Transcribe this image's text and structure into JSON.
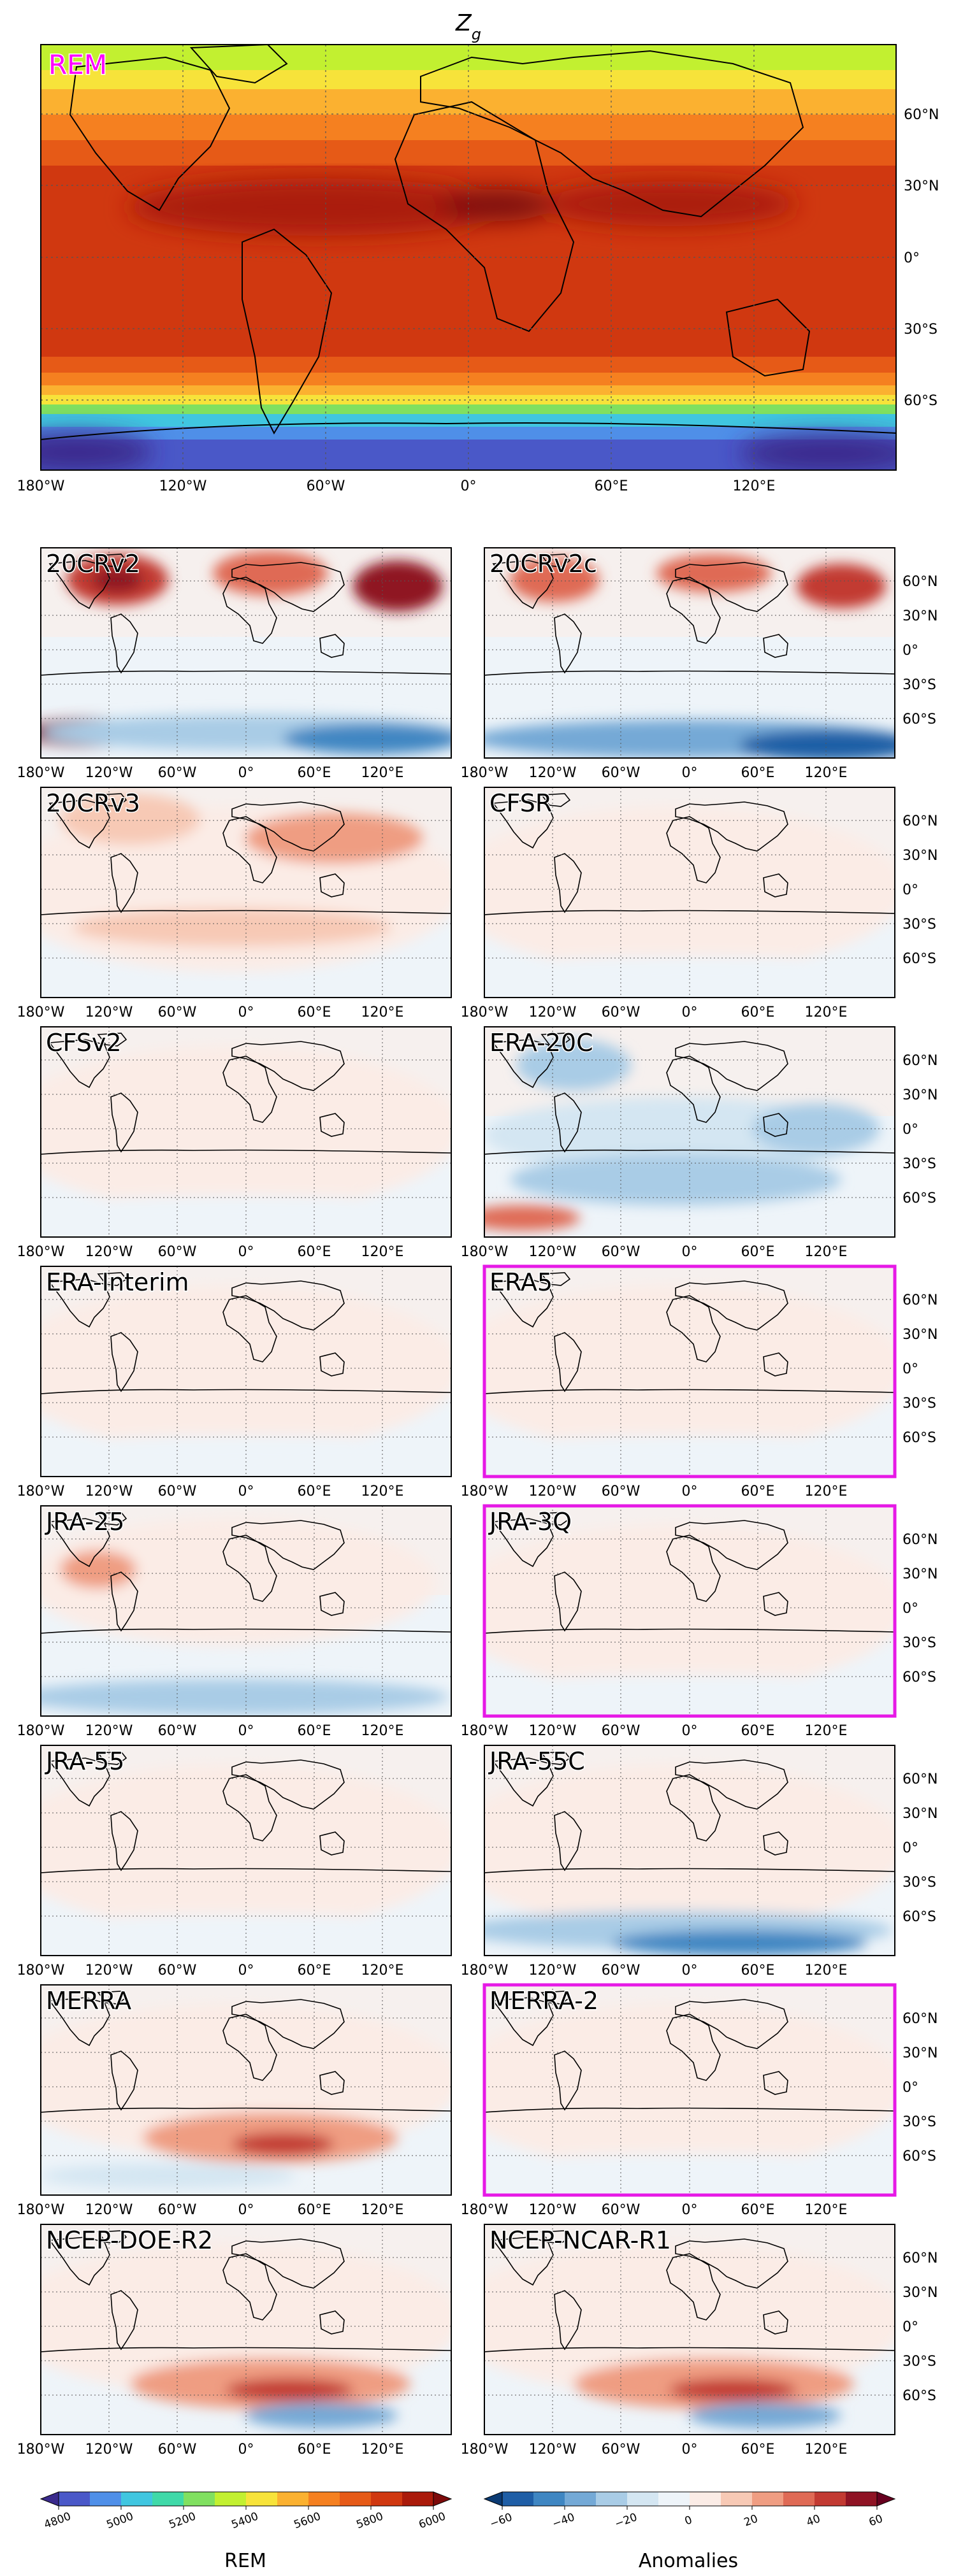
{
  "title": "Z",
  "title_sub": "g",
  "colors": {
    "highlight": "#e619e6",
    "rem_label": "#ff00ff"
  },
  "main_panel": {
    "label": "REM"
  },
  "panels": [
    {
      "label": "20CRv2",
      "highlight": false,
      "pattern": "v2"
    },
    {
      "label": "20CRv2c",
      "highlight": false,
      "pattern": "v2c"
    },
    {
      "label": "20CRv3",
      "highlight": false,
      "pattern": "warm"
    },
    {
      "label": "CFSR",
      "highlight": false,
      "pattern": "faint"
    },
    {
      "label": "CFSv2",
      "highlight": false,
      "pattern": "faint"
    },
    {
      "label": "ERA-20C",
      "highlight": false,
      "pattern": "era20c"
    },
    {
      "label": "ERA-Interim",
      "highlight": false,
      "pattern": "faint"
    },
    {
      "label": "ERA5",
      "highlight": true,
      "pattern": "faint"
    },
    {
      "label": "JRA-25",
      "highlight": false,
      "pattern": "jra25"
    },
    {
      "label": "JRA-3Q",
      "highlight": true,
      "pattern": "faint"
    },
    {
      "label": "JRA-55",
      "highlight": false,
      "pattern": "faint"
    },
    {
      "label": "JRA-55C",
      "highlight": false,
      "pattern": "jra55c"
    },
    {
      "label": "MERRA",
      "highlight": false,
      "pattern": "merra"
    },
    {
      "label": "MERRA-2",
      "highlight": true,
      "pattern": "faint"
    },
    {
      "label": "NCEP-DOE-R2",
      "highlight": false,
      "pattern": "ncep"
    },
    {
      "label": "NCEP-NCAR-R1",
      "highlight": false,
      "pattern": "ncep"
    }
  ],
  "lon_ticks_main": [
    "180°W",
    "120°W",
    "60°W",
    "0°",
    "60°E",
    "120°E"
  ],
  "lat_ticks_main": [
    "60°N",
    "30°N",
    "0°",
    "30°S",
    "60°S"
  ],
  "lon_ticks_small": [
    "180°W",
    "120°W",
    "60°W",
    "0°",
    "60°E",
    "120°E"
  ],
  "lat_ticks_small": [
    "60°N",
    "30°N",
    "0°",
    "30°S",
    "60°S"
  ],
  "colorbar_rem": {
    "label": "REM",
    "ticks": [
      "4800",
      "5000",
      "5200",
      "5400",
      "5600",
      "5800",
      "6000"
    ],
    "colors": [
      "#3a2a8c",
      "#4a58c8",
      "#4f8fe8",
      "#40c6e0",
      "#3fd9a8",
      "#80e060",
      "#c2f030",
      "#f7e33a",
      "#fbb130",
      "#f58020",
      "#e65a17",
      "#d03810",
      "#aa1a0a",
      "#7d0a0a"
    ]
  },
  "colorbar_anom": {
    "label": "Anomalies",
    "ticks": [
      "−60",
      "−40",
      "−20",
      "0",
      "20",
      "40",
      "60"
    ],
    "colors": [
      "#0b3a73",
      "#1f5ea6",
      "#3f86c2",
      "#74a9d6",
      "#a9cce6",
      "#d4e6f2",
      "#eef4f9",
      "#fbece6",
      "#f7c9b5",
      "#ef9d82",
      "#df6a55",
      "#c23a32",
      "#8f1324",
      "#67001f"
    ]
  }
}
